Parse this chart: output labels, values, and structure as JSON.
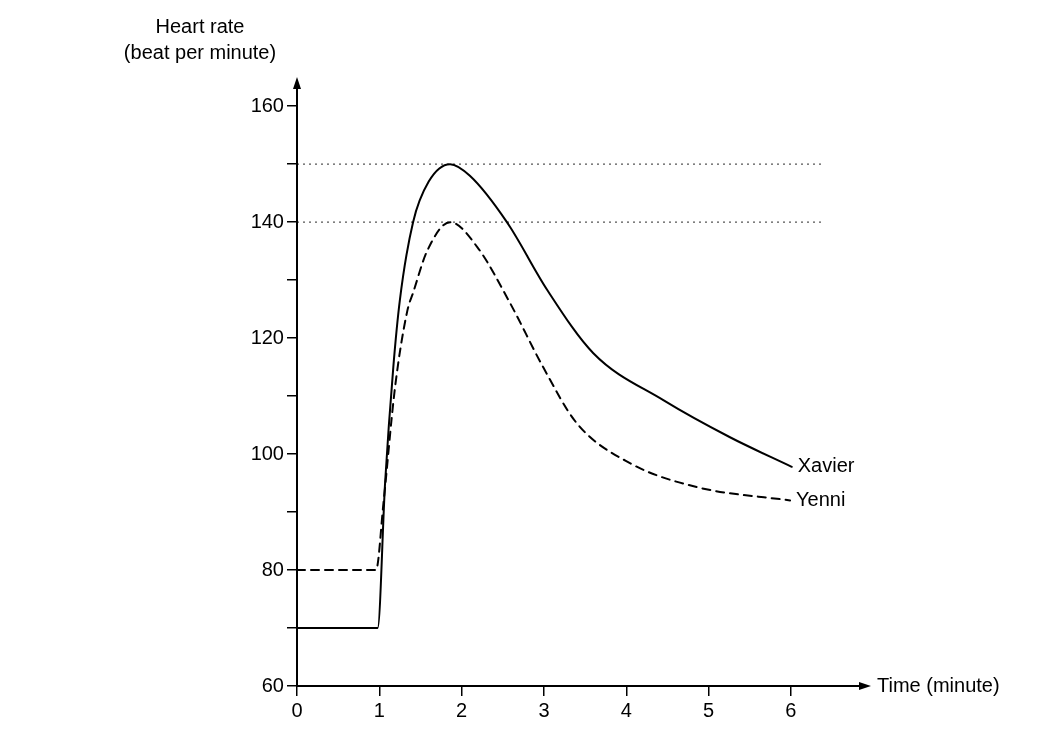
{
  "chart_data": {
    "type": "line",
    "xlabel": "Time (minute)",
    "ylabel": "Heart rate\n(beat per minute)",
    "xlim": [
      0,
      6.9
    ],
    "xticks": [
      0,
      1,
      2,
      3,
      4,
      5,
      6
    ],
    "ylim": [
      60,
      164
    ],
    "yticks": [
      60,
      {
        "value": 70,
        "label": null
      },
      80,
      {
        "value": 90,
        "label": null
      },
      100,
      {
        "value": 110,
        "label": null
      },
      120,
      {
        "value": 130,
        "label": null
      },
      140,
      {
        "value": 150,
        "label": null
      },
      160
    ],
    "grid": false,
    "legend": false,
    "marker": "none",
    "ref_lines": [
      {
        "axis": "y",
        "value": 150,
        "color": "#555555",
        "line_style": "dotted"
      },
      {
        "axis": "y",
        "value": 140,
        "color": "#555555",
        "line_style": "dotted"
      }
    ],
    "series": [
      {
        "name": "Xavier",
        "color": "#000000",
        "line_style": "solid",
        "x": [
          0,
          0.98,
          1.07,
          1.17,
          1.25,
          1.41,
          1.6,
          1.86,
          2.1,
          2.55,
          3.04,
          3.6,
          4.45,
          5.26,
          6.01
        ],
        "values": [
          70,
          70,
          95,
          115,
          126.6,
          140,
          147,
          150,
          148,
          140,
          128.3,
          117.4,
          109.3,
          102.9,
          97.8
        ]
      },
      {
        "name": "Yenni",
        "color": "#000000",
        "line_style": "dashed",
        "x": [
          0,
          0.96,
          1.05,
          1.19,
          1.34,
          1.41,
          1.58,
          1.86,
          2.19,
          2.59,
          2.99,
          3.4,
          4.05,
          4.86,
          5.99
        ],
        "values": [
          80,
          80,
          91.5,
          111.4,
          124.7,
          127.8,
          135,
          140,
          135.7,
          126,
          115,
          105.3,
          98.4,
          94.3,
          92
        ]
      }
    ]
  }
}
